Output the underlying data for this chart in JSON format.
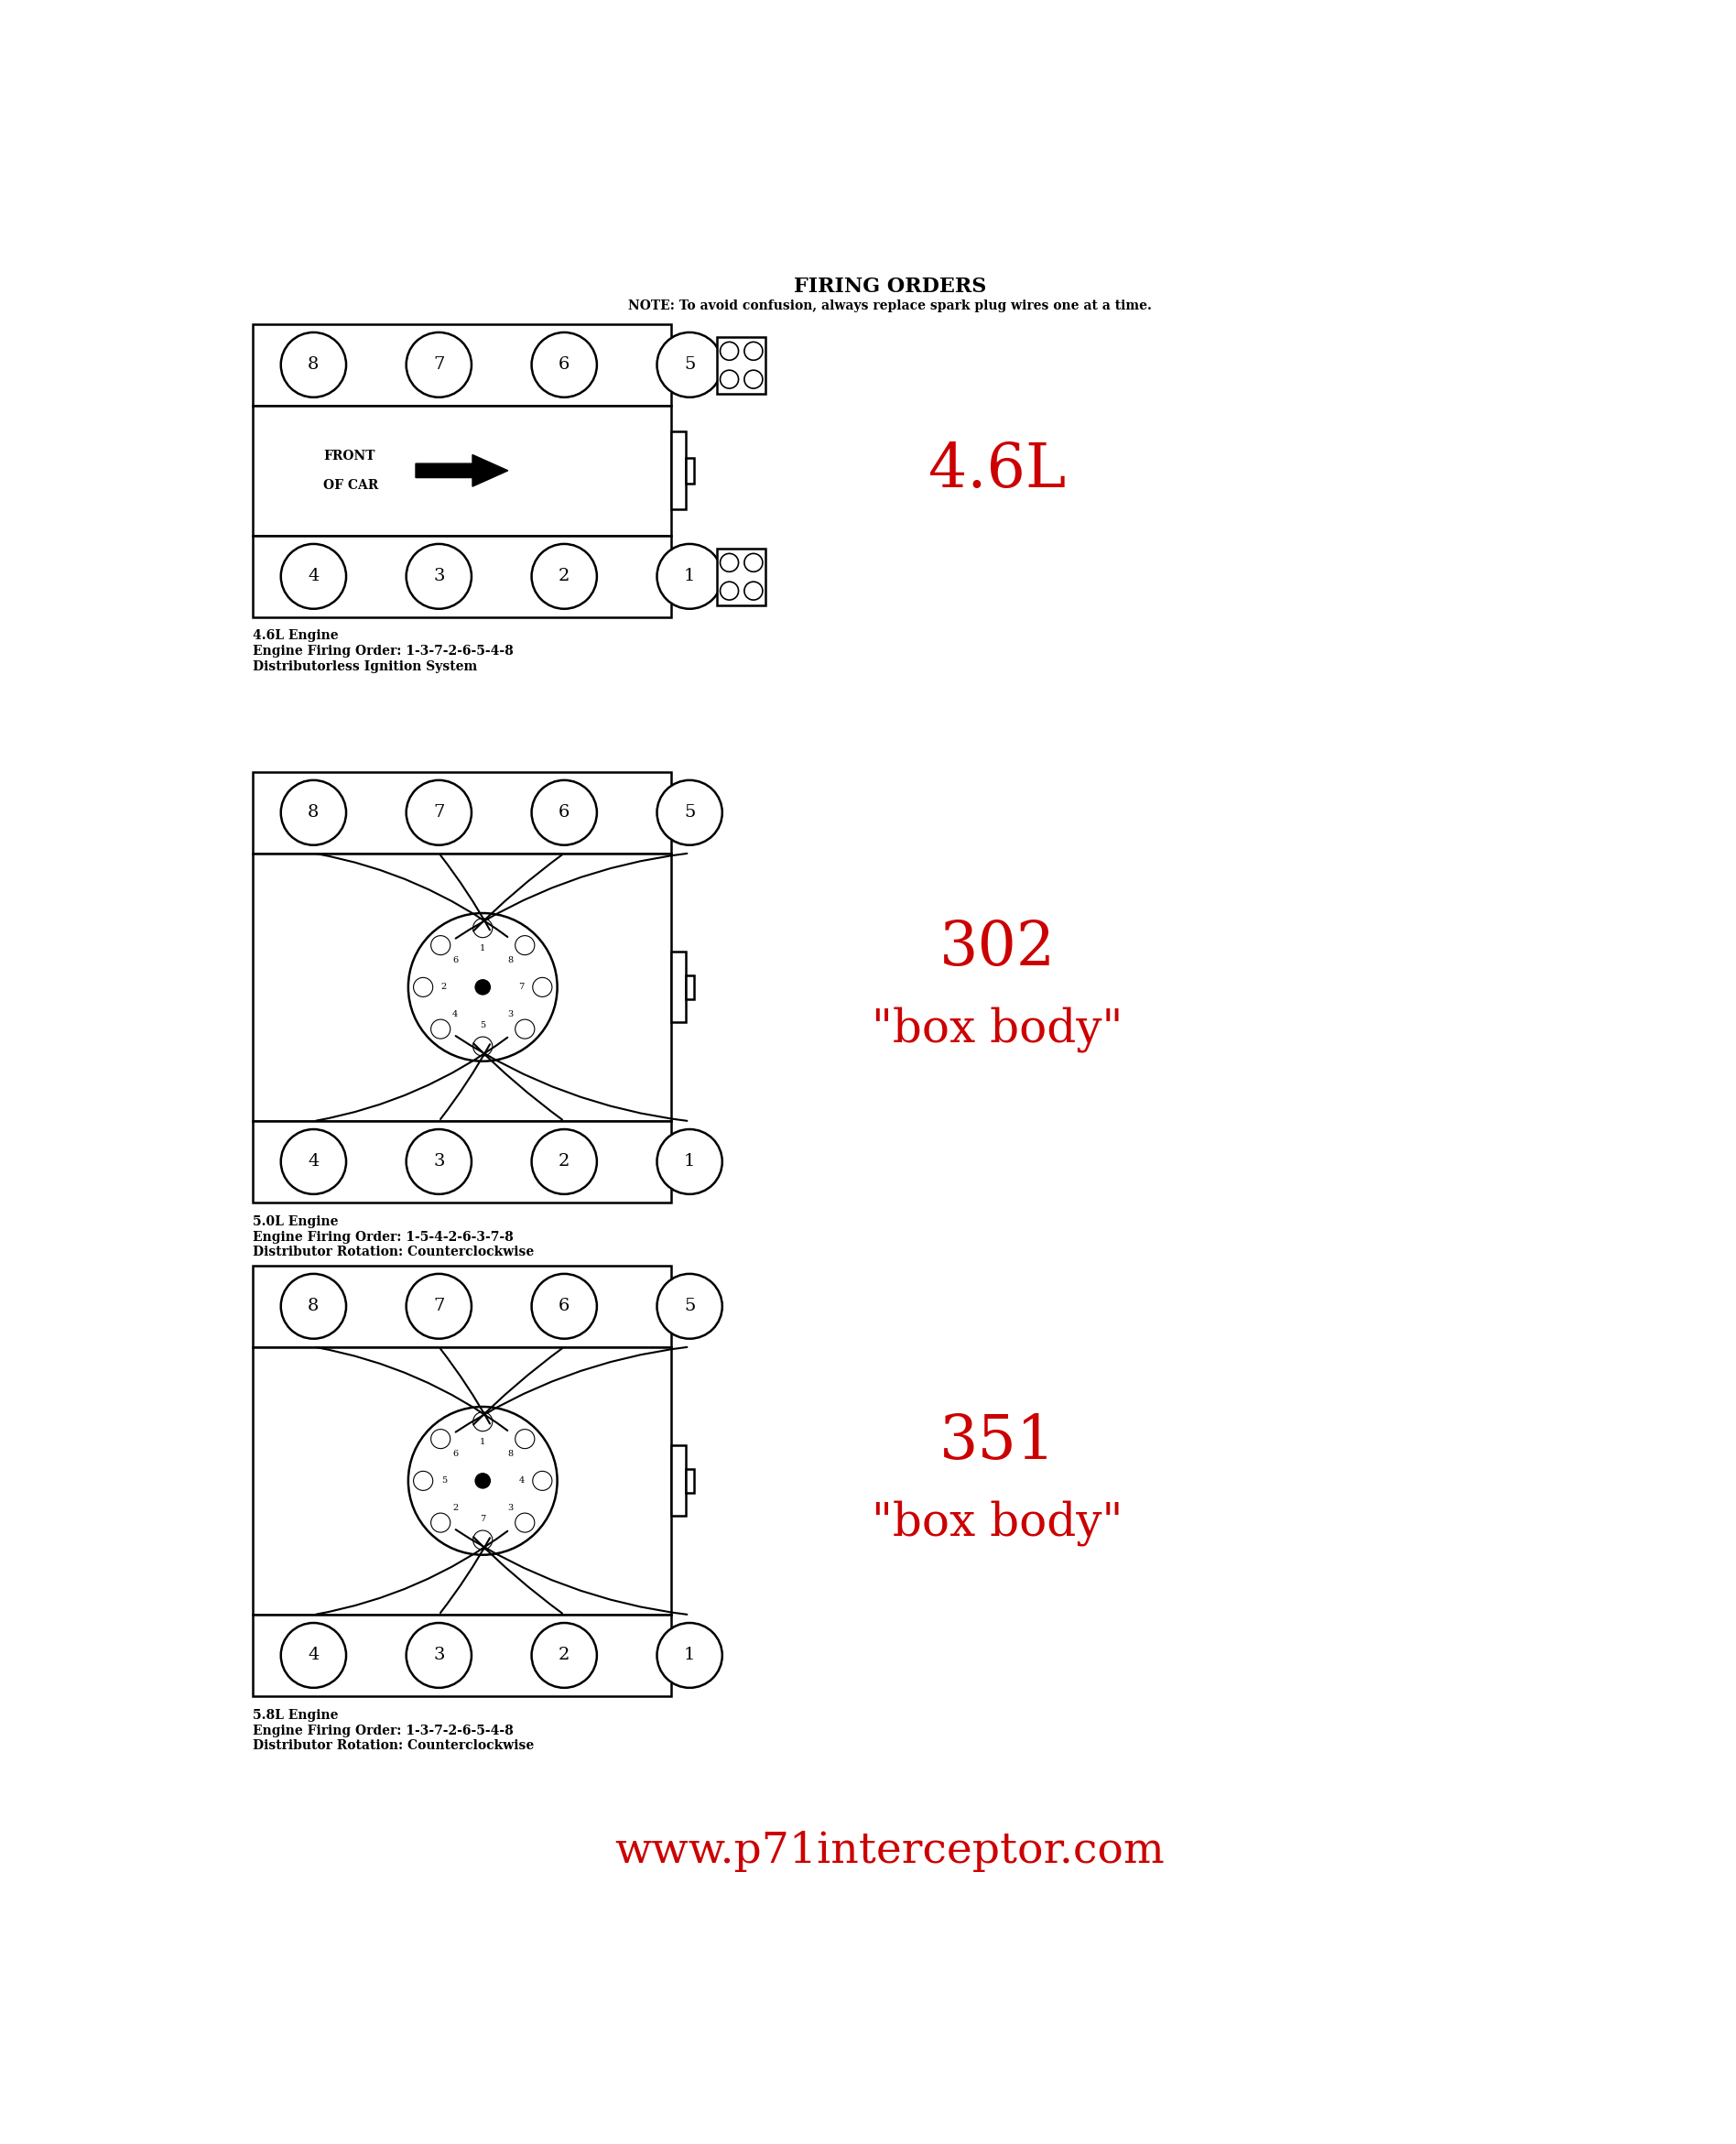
{
  "title": "FIRING ORDERS",
  "note": "NOTE: To avoid confusion, always replace spark plug wires one at a time.",
  "bg_color": "#ffffff",
  "engine1": {
    "label_large": "4.6L",
    "label_color": "#cc0000",
    "top_cylinders": [
      "8",
      "7",
      "6",
      "5"
    ],
    "bottom_cylinders": [
      "4",
      "3",
      "2",
      "1"
    ],
    "caption_line1": "4.6L Engine",
    "caption_line2": "Engine Firing Order: 1-3-7-2-6-5-4-8",
    "caption_line3": "Distributorless Ignition System",
    "has_distributor": false
  },
  "engine2": {
    "label_large": "302",
    "label_sub": "\"box body\"",
    "label_color": "#cc0000",
    "top_cylinders": [
      "8",
      "7",
      "6",
      "5"
    ],
    "bottom_cylinders": [
      "4",
      "3",
      "2",
      "1"
    ],
    "caption_line1": "5.0L Engine",
    "caption_line2": "Engine Firing Order: 1-5-4-2-6-3-7-8",
    "caption_line3": "Distributor Rotation: Counterclockwise",
    "has_distributor": true,
    "dist_numbers": [
      "1",
      "8",
      "7",
      "3",
      "5",
      "4",
      "2",
      "6"
    ]
  },
  "engine3": {
    "label_large": "351",
    "label_sub": "\"box body\"",
    "label_color": "#cc0000",
    "top_cylinders": [
      "8",
      "7",
      "6",
      "5"
    ],
    "bottom_cylinders": [
      "4",
      "3",
      "2",
      "1"
    ],
    "caption_line1": "5.8L Engine",
    "caption_line2": "Engine Firing Order: 1-3-7-2-6-5-4-8",
    "caption_line3": "Distributor Rotation: Counterclockwise",
    "has_distributor": true,
    "dist_numbers": [
      "1",
      "8",
      "4",
      "3",
      "7",
      "2",
      "5",
      "6"
    ]
  },
  "footer": "www.p71interceptor.com",
  "footer_color": "#cc0000",
  "title_fontsize": 16,
  "note_fontsize": 10,
  "label_fontsize": 48,
  "sub_fontsize": 36,
  "caption_fontsize": 10,
  "footer_fontsize": 34,
  "cyl_fontsize": 12,
  "dist_fontsize": 7
}
